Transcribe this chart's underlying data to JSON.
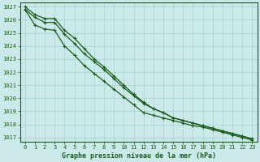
{
  "xlabel": "Graphe pression niveau de la mer (hPa)",
  "bg_color": "#cce9e9",
  "grid_color": "#99cccc",
  "line_color": "#1a5c1a",
  "x": [
    0,
    1,
    2,
    3,
    4,
    5,
    6,
    7,
    8,
    9,
    10,
    11,
    12,
    13,
    14,
    15,
    16,
    17,
    18,
    19,
    20,
    21,
    22,
    23
  ],
  "line1": [
    1026.8,
    1026.2,
    1025.8,
    1025.8,
    1024.9,
    1024.2,
    1023.4,
    1022.8,
    1022.2,
    1021.5,
    1020.8,
    1020.2,
    1019.6,
    1019.2,
    1018.9,
    1018.5,
    1018.3,
    1018.1,
    1017.9,
    1017.7,
    1017.5,
    1017.3,
    1017.1,
    1016.9
  ],
  "line2": [
    1027.0,
    1026.4,
    1026.1,
    1026.1,
    1025.2,
    1024.6,
    1023.8,
    1023.0,
    1022.4,
    1021.7,
    1021.0,
    1020.3,
    1019.7,
    1019.2,
    1018.9,
    1018.5,
    1018.3,
    1018.1,
    1017.9,
    1017.7,
    1017.5,
    1017.3,
    1017.1,
    1016.9
  ],
  "line3": [
    1026.8,
    1025.6,
    1025.3,
    1025.2,
    1024.0,
    1023.3,
    1022.5,
    1021.9,
    1021.3,
    1020.7,
    1020.1,
    1019.5,
    1018.9,
    1018.7,
    1018.5,
    1018.3,
    1018.1,
    1017.9,
    1017.8,
    1017.6,
    1017.4,
    1017.2,
    1017.0,
    1016.8
  ],
  "ylim_min": 1016.7,
  "ylim_max": 1027.3,
  "yticks": [
    1017,
    1018,
    1019,
    1020,
    1021,
    1022,
    1023,
    1024,
    1025,
    1026,
    1027
  ],
  "xticks": [
    0,
    1,
    2,
    3,
    4,
    5,
    6,
    7,
    8,
    9,
    10,
    11,
    12,
    13,
    14,
    15,
    16,
    17,
    18,
    19,
    20,
    21,
    22,
    23
  ],
  "tick_fontsize": 5,
  "xlabel_fontsize": 6,
  "lw": 0.9,
  "ms": 2.5
}
